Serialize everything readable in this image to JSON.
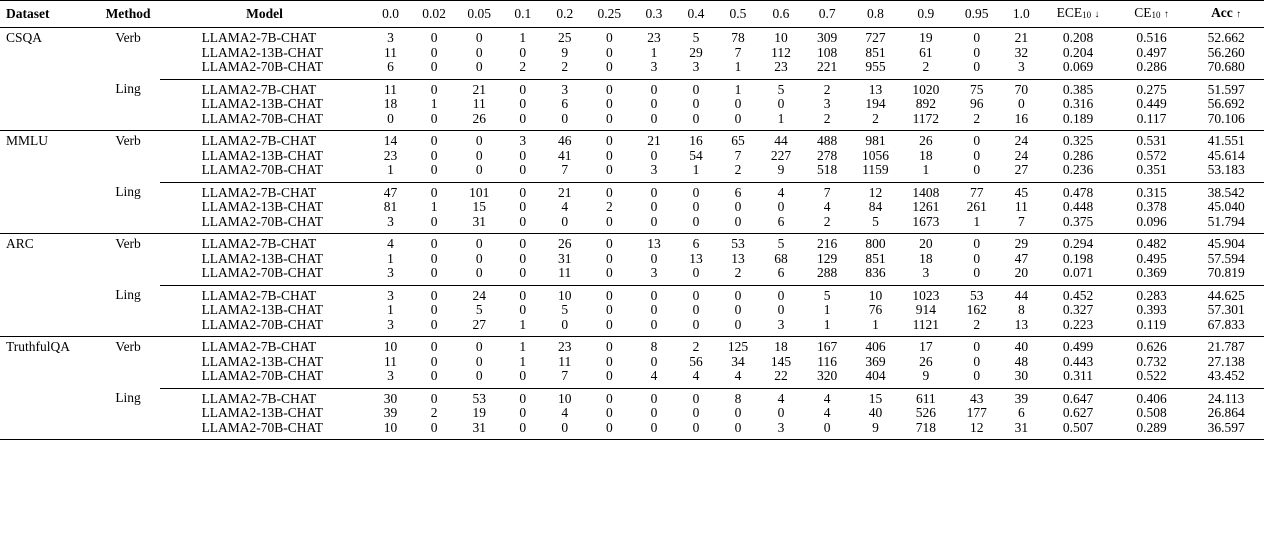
{
  "headers": {
    "dataset": "Dataset",
    "method": "Method",
    "model": "Model",
    "bins": [
      "0.0",
      "0.02",
      "0.05",
      "0.1",
      "0.2",
      "0.25",
      "0.3",
      "0.4",
      "0.5",
      "0.6",
      "0.7",
      "0.8",
      "0.9",
      "0.95",
      "1.0"
    ],
    "ece": "ECE",
    "ece_sub": "10",
    "ece_arrow": "↓",
    "ce": "CE",
    "ce_sub": "10",
    "ce_arrow": "↑",
    "acc": "Acc",
    "acc_arrow": "↑"
  },
  "models": [
    "LLAMA2-7B-CHAT",
    "LLAMA2-13B-CHAT",
    "LLAMA2-70B-CHAT"
  ],
  "datasets": [
    {
      "name": "CSQA",
      "methods": [
        {
          "name": "Verb",
          "rows": [
            {
              "bins": [
                "3",
                "0",
                "0",
                "1",
                "25",
                "0",
                "23",
                "5",
                "78",
                "10",
                "309",
                "727",
                "19",
                "0",
                "21"
              ],
              "ece": "0.208",
              "ce": "0.516",
              "acc": "52.662"
            },
            {
              "bins": [
                "11",
                "0",
                "0",
                "0",
                "9",
                "0",
                "1",
                "29",
                "7",
                "112",
                "108",
                "851",
                "61",
                "0",
                "32"
              ],
              "ece": "0.204",
              "ce": "0.497",
              "acc": "56.260"
            },
            {
              "bins": [
                "6",
                "0",
                "0",
                "2",
                "2",
                "0",
                "3",
                "3",
                "1",
                "23",
                "221",
                "955",
                "2",
                "0",
                "3"
              ],
              "ece": "0.069",
              "ce": "0.286",
              "acc": "70.680"
            }
          ]
        },
        {
          "name": "Ling",
          "rows": [
            {
              "bins": [
                "11",
                "0",
                "21",
                "0",
                "3",
                "0",
                "0",
                "0",
                "1",
                "5",
                "2",
                "13",
                "1020",
                "75",
                "70"
              ],
              "ece": "0.385",
              "ce": "0.275",
              "acc": "51.597"
            },
            {
              "bins": [
                "18",
                "1",
                "11",
                "0",
                "6",
                "0",
                "0",
                "0",
                "0",
                "0",
                "3",
                "194",
                "892",
                "96",
                "0"
              ],
              "ece": "0.316",
              "ce": "0.449",
              "acc": "56.692"
            },
            {
              "bins": [
                "0",
                "0",
                "26",
                "0",
                "0",
                "0",
                "0",
                "0",
                "0",
                "1",
                "2",
                "2",
                "1172",
                "2",
                "16"
              ],
              "ece": "0.189",
              "ce": "0.117",
              "acc": "70.106"
            }
          ]
        }
      ]
    },
    {
      "name": "MMLU",
      "methods": [
        {
          "name": "Verb",
          "rows": [
            {
              "bins": [
                "14",
                "0",
                "0",
                "3",
                "46",
                "0",
                "21",
                "16",
                "65",
                "44",
                "488",
                "981",
                "26",
                "0",
                "24"
              ],
              "ece": "0.325",
              "ce": "0.531",
              "acc": "41.551"
            },
            {
              "bins": [
                "23",
                "0",
                "0",
                "0",
                "41",
                "0",
                "0",
                "54",
                "7",
                "227",
                "278",
                "1056",
                "18",
                "0",
                "24"
              ],
              "ece": "0.286",
              "ce": "0.572",
              "acc": "45.614"
            },
            {
              "bins": [
                "1",
                "0",
                "0",
                "0",
                "7",
                "0",
                "3",
                "1",
                "2",
                "9",
                "518",
                "1159",
                "1",
                "0",
                "27"
              ],
              "ece": "0.236",
              "ce": "0.351",
              "acc": "53.183"
            }
          ]
        },
        {
          "name": "Ling",
          "rows": [
            {
              "bins": [
                "47",
                "0",
                "101",
                "0",
                "21",
                "0",
                "0",
                "0",
                "6",
                "4",
                "7",
                "12",
                "1408",
                "77",
                "45"
              ],
              "ece": "0.478",
              "ce": "0.315",
              "acc": "38.542"
            },
            {
              "bins": [
                "81",
                "1",
                "15",
                "0",
                "4",
                "2",
                "0",
                "0",
                "0",
                "0",
                "4",
                "84",
                "1261",
                "261",
                "11"
              ],
              "ece": "0.448",
              "ce": "0.378",
              "acc": "45.040"
            },
            {
              "bins": [
                "3",
                "0",
                "31",
                "0",
                "0",
                "0",
                "0",
                "0",
                "0",
                "6",
                "2",
                "5",
                "1673",
                "1",
                "7"
              ],
              "ece": "0.375",
              "ce": "0.096",
              "acc": "51.794"
            }
          ]
        }
      ]
    },
    {
      "name": "ARC",
      "methods": [
        {
          "name": "Verb",
          "rows": [
            {
              "bins": [
                "4",
                "0",
                "0",
                "0",
                "26",
                "0",
                "13",
                "6",
                "53",
                "5",
                "216",
                "800",
                "20",
                "0",
                "29"
              ],
              "ece": "0.294",
              "ce": "0.482",
              "acc": "45.904"
            },
            {
              "bins": [
                "1",
                "0",
                "0",
                "0",
                "31",
                "0",
                "0",
                "13",
                "13",
                "68",
                "129",
                "851",
                "18",
                "0",
                "47"
              ],
              "ece": "0.198",
              "ce": "0.495",
              "acc": "57.594"
            },
            {
              "bins": [
                "3",
                "0",
                "0",
                "0",
                "11",
                "0",
                "3",
                "0",
                "2",
                "6",
                "288",
                "836",
                "3",
                "0",
                "20"
              ],
              "ece": "0.071",
              "ce": "0.369",
              "acc": "70.819"
            }
          ]
        },
        {
          "name": "Ling",
          "rows": [
            {
              "bins": [
                "3",
                "0",
                "24",
                "0",
                "10",
                "0",
                "0",
                "0",
                "0",
                "0",
                "5",
                "10",
                "1023",
                "53",
                "44"
              ],
              "ece": "0.452",
              "ce": "0.283",
              "acc": "44.625"
            },
            {
              "bins": [
                "1",
                "0",
                "5",
                "0",
                "5",
                "0",
                "0",
                "0",
                "0",
                "0",
                "1",
                "76",
                "914",
                "162",
                "8"
              ],
              "ece": "0.327",
              "ce": "0.393",
              "acc": "57.301"
            },
            {
              "bins": [
                "3",
                "0",
                "27",
                "1",
                "0",
                "0",
                "0",
                "0",
                "0",
                "3",
                "1",
                "1",
                "1121",
                "2",
                "13"
              ],
              "ece": "0.223",
              "ce": "0.119",
              "acc": "67.833"
            }
          ]
        }
      ]
    },
    {
      "name": "TruthfulQA",
      "methods": [
        {
          "name": "Verb",
          "rows": [
            {
              "bins": [
                "10",
                "0",
                "0",
                "1",
                "23",
                "0",
                "8",
                "2",
                "125",
                "18",
                "167",
                "406",
                "17",
                "0",
                "40"
              ],
              "ece": "0.499",
              "ce": "0.626",
              "acc": "21.787"
            },
            {
              "bins": [
                "11",
                "0",
                "0",
                "1",
                "11",
                "0",
                "0",
                "56",
                "34",
                "145",
                "116",
                "369",
                "26",
                "0",
                "48"
              ],
              "ece": "0.443",
              "ce": "0.732",
              "acc": "27.138"
            },
            {
              "bins": [
                "3",
                "0",
                "0",
                "0",
                "7",
                "0",
                "4",
                "4",
                "4",
                "22",
                "320",
                "404",
                "9",
                "0",
                "30"
              ],
              "ece": "0.311",
              "ce": "0.522",
              "acc": "43.452"
            }
          ]
        },
        {
          "name": "Ling",
          "rows": [
            {
              "bins": [
                "30",
                "0",
                "53",
                "0",
                "10",
                "0",
                "0",
                "0",
                "8",
                "4",
                "4",
                "15",
                "611",
                "43",
                "39"
              ],
              "ece": "0.647",
              "ce": "0.406",
              "acc": "24.113"
            },
            {
              "bins": [
                "39",
                "2",
                "19",
                "0",
                "4",
                "0",
                "0",
                "0",
                "0",
                "0",
                "4",
                "40",
                "526",
                "177",
                "6"
              ],
              "ece": "0.627",
              "ce": "0.508",
              "acc": "26.864"
            },
            {
              "bins": [
                "10",
                "0",
                "31",
                "0",
                "0",
                "0",
                "0",
                "0",
                "0",
                "3",
                "0",
                "9",
                "718",
                "12",
                "31"
              ],
              "ece": "0.507",
              "ce": "0.289",
              "acc": "36.597"
            }
          ]
        }
      ]
    }
  ]
}
